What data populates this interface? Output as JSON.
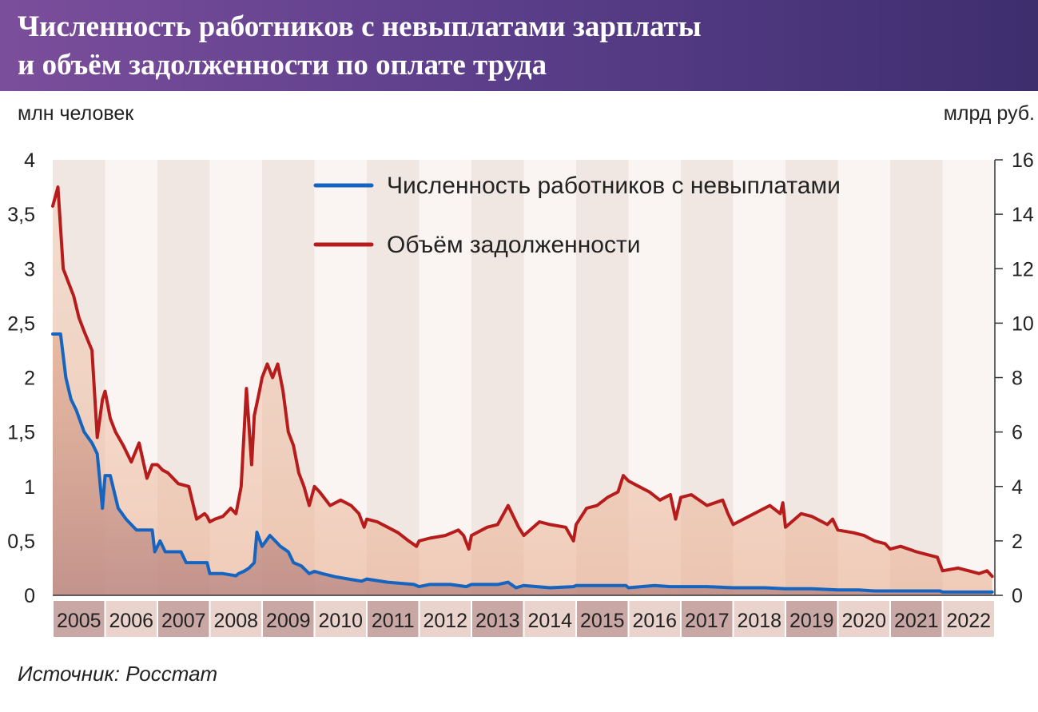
{
  "header": {
    "title_line1": "Численность работников с невыплатами зарплаты",
    "title_line2": "и объём задолженности по оплате труда"
  },
  "axes": {
    "left_unit": "млн человек",
    "right_unit": "млрд руб."
  },
  "source": "Источник: Росстат",
  "colors": {
    "header_start": "#7b4e9b",
    "header_end": "#3e2e6e",
    "workers_line": "#1565c0",
    "debt_line": "#b71c1c",
    "year_band_dark": "#c9a7a4",
    "year_band_light": "#e9d3cc"
  },
  "chart_data": {
    "type": "line",
    "legend_placement": "top-center",
    "grid": false,
    "xlim": [
      2005,
      2023
    ],
    "ylim_left": [
      0,
      4
    ],
    "ylim_right": [
      0,
      16
    ],
    "y_ticks_left": [
      "0",
      "0,5",
      "1",
      "1,5",
      "2",
      "2,5",
      "3",
      "3,5",
      "4"
    ],
    "y_ticks_right": [
      "0",
      "2",
      "4",
      "6",
      "8",
      "10",
      "12",
      "14",
      "16"
    ],
    "categories": [
      "2005",
      "2006",
      "2007",
      "2008",
      "2009",
      "2010",
      "2011",
      "2012",
      "2013",
      "2014",
      "2015",
      "2016",
      "2017",
      "2018",
      "2019",
      "2020",
      "2021",
      "2022"
    ],
    "series": [
      {
        "name": "Численность работников с невыплатами",
        "axis": "left",
        "color": "#1565c0",
        "x": [
          2005.0,
          2005.15,
          2005.25,
          2005.35,
          2005.45,
          2005.6,
          2005.75,
          2005.85,
          2005.95,
          2006.0,
          2006.1,
          2006.25,
          2006.4,
          2006.6,
          2006.75,
          2006.9,
          2006.95,
          2007.05,
          2007.15,
          2007.45,
          2007.55,
          2007.75,
          2007.95,
          2008.0,
          2008.25,
          2008.5,
          2008.55,
          2008.65,
          2008.75,
          2008.85,
          2008.9,
          2009.0,
          2009.15,
          2009.25,
          2009.35,
          2009.5,
          2009.6,
          2009.75,
          2009.9,
          2010.0,
          2010.15,
          2010.4,
          2010.65,
          2010.9,
          2011.0,
          2011.4,
          2011.9,
          2012.0,
          2012.2,
          2012.6,
          2012.9,
          2013.0,
          2013.5,
          2013.7,
          2013.85,
          2014.0,
          2014.5,
          2014.95,
          2015.0,
          2015.5,
          2015.95,
          2016.0,
          2016.5,
          2016.8,
          2017.0,
          2017.5,
          2018.0,
          2018.6,
          2019.0,
          2019.5,
          2020.0,
          2020.4,
          2020.7,
          2021.0,
          2021.5,
          2021.95,
          2022.0,
          2022.5,
          2022.95
        ],
        "y": [
          2.4,
          2.4,
          2.0,
          1.8,
          1.7,
          1.5,
          1.4,
          1.3,
          0.8,
          1.1,
          1.1,
          0.8,
          0.7,
          0.6,
          0.6,
          0.6,
          0.4,
          0.5,
          0.4,
          0.4,
          0.3,
          0.3,
          0.3,
          0.2,
          0.2,
          0.18,
          0.2,
          0.22,
          0.25,
          0.3,
          0.58,
          0.45,
          0.55,
          0.5,
          0.45,
          0.4,
          0.3,
          0.27,
          0.2,
          0.22,
          0.2,
          0.17,
          0.15,
          0.13,
          0.15,
          0.12,
          0.1,
          0.08,
          0.1,
          0.1,
          0.08,
          0.1,
          0.1,
          0.12,
          0.07,
          0.09,
          0.07,
          0.08,
          0.09,
          0.09,
          0.09,
          0.07,
          0.09,
          0.08,
          0.08,
          0.08,
          0.07,
          0.07,
          0.06,
          0.06,
          0.05,
          0.05,
          0.04,
          0.04,
          0.04,
          0.04,
          0.03,
          0.03,
          0.03
        ]
      },
      {
        "name": "Объём задолженности",
        "axis": "right",
        "color": "#b71c1c",
        "x": [
          2005.0,
          2005.1,
          2005.2,
          2005.3,
          2005.4,
          2005.5,
          2005.6,
          2005.75,
          2005.85,
          2005.95,
          2006.0,
          2006.1,
          2006.2,
          2006.35,
          2006.5,
          2006.65,
          2006.8,
          2006.9,
          2007.0,
          2007.1,
          2007.2,
          2007.4,
          2007.6,
          2007.75,
          2007.9,
          2007.95,
          2008.0,
          2008.1,
          2008.25,
          2008.4,
          2008.5,
          2008.6,
          2008.7,
          2008.8,
          2008.85,
          2008.95,
          2009.0,
          2009.1,
          2009.2,
          2009.3,
          2009.4,
          2009.5,
          2009.6,
          2009.7,
          2009.8,
          2009.9,
          2010.0,
          2010.1,
          2010.3,
          2010.5,
          2010.7,
          2010.85,
          2010.95,
          2011.0,
          2011.2,
          2011.4,
          2011.6,
          2011.8,
          2011.95,
          2012.0,
          2012.2,
          2012.5,
          2012.75,
          2012.85,
          2012.95,
          2013.0,
          2013.3,
          2013.5,
          2013.7,
          2013.9,
          2014.0,
          2014.3,
          2014.5,
          2014.8,
          2014.95,
          2015.0,
          2015.2,
          2015.4,
          2015.6,
          2015.8,
          2015.9,
          2016.0,
          2016.2,
          2016.4,
          2016.6,
          2016.8,
          2016.9,
          2017.0,
          2017.2,
          2017.5,
          2017.8,
          2017.9,
          2018.0,
          2018.3,
          2018.5,
          2018.7,
          2018.9,
          2018.95,
          2019.0,
          2019.3,
          2019.5,
          2019.8,
          2019.9,
          2020.0,
          2020.3,
          2020.5,
          2020.7,
          2020.9,
          2021.0,
          2021.2,
          2021.5,
          2021.7,
          2021.9,
          2022.0,
          2022.3,
          2022.5,
          2022.7,
          2022.85,
          2022.95
        ],
        "y": [
          14.3,
          15.0,
          12.0,
          11.5,
          11.0,
          10.2,
          9.7,
          9.0,
          5.8,
          7.2,
          7.5,
          6.5,
          6.0,
          5.5,
          4.9,
          5.6,
          4.3,
          4.8,
          4.8,
          4.6,
          4.5,
          4.1,
          4.0,
          2.8,
          3.0,
          2.9,
          2.7,
          2.8,
          2.9,
          3.2,
          3.0,
          4.0,
          7.6,
          4.8,
          6.6,
          7.5,
          8.0,
          8.5,
          8.0,
          8.5,
          7.5,
          6.0,
          5.5,
          4.5,
          4.0,
          3.3,
          4.0,
          3.8,
          3.3,
          3.5,
          3.3,
          3.0,
          2.5,
          2.8,
          2.7,
          2.5,
          2.3,
          2.0,
          1.8,
          2.0,
          2.1,
          2.2,
          2.4,
          2.2,
          1.7,
          2.2,
          2.5,
          2.6,
          3.3,
          2.5,
          2.2,
          2.7,
          2.6,
          2.5,
          2.0,
          2.6,
          3.2,
          3.3,
          3.6,
          3.8,
          4.4,
          4.2,
          4.0,
          3.8,
          3.5,
          3.7,
          2.8,
          3.6,
          3.7,
          3.3,
          3.5,
          3.0,
          2.6,
          2.9,
          3.1,
          3.3,
          3.0,
          3.4,
          2.5,
          3.0,
          2.9,
          2.6,
          2.8,
          2.4,
          2.3,
          2.2,
          2.0,
          1.9,
          1.7,
          1.8,
          1.6,
          1.5,
          1.4,
          0.9,
          1.0,
          0.9,
          0.8,
          0.9,
          0.7
        ]
      }
    ]
  }
}
